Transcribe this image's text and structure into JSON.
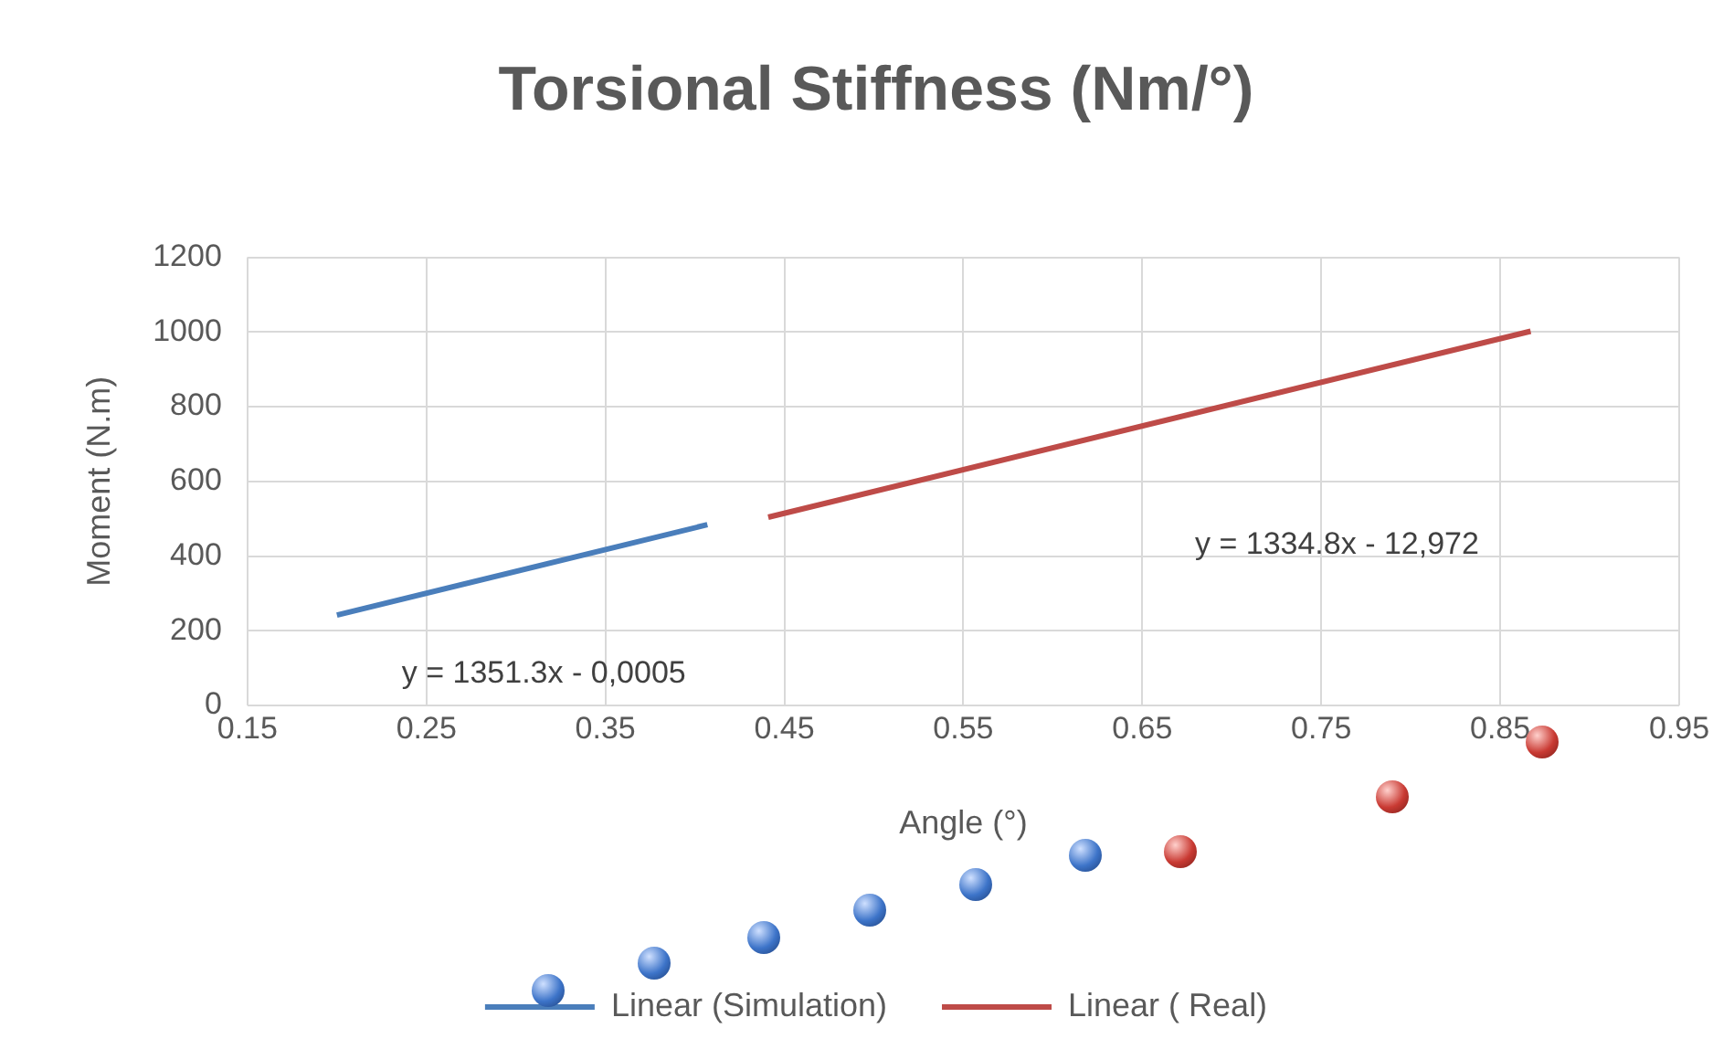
{
  "chart_data": {
    "type": "line",
    "title": "Torsional Stiffness (Nm/°)",
    "xlabel": "Angle (°)",
    "ylabel": "Moment (N.m)",
    "series": [
      {
        "name": "Linear (Simulation)",
        "color": "#4a7ebb",
        "x": [
          0.2,
          0.407
        ],
        "values": [
          242,
          484
        ]
      },
      {
        "name": "Linear ( Real)",
        "color": "#be4b48",
        "x": [
          0.441,
          0.867
        ],
        "values": [
          504,
          1002
        ]
      }
    ],
    "xlim": [
      0.15,
      0.95
    ],
    "xticks": [
      0.15,
      0.25,
      0.35,
      0.45,
      0.55,
      0.65,
      0.75,
      0.85,
      0.95
    ],
    "ylim": [
      0,
      1200
    ],
    "yticks": [
      0,
      200,
      400,
      600,
      800,
      1000,
      1200
    ],
    "annotations": [
      "y = 1351.3x - 0,0005",
      "y = 1334.8x - 12,972"
    ],
    "grid": true,
    "legend": "bottom",
    "marker": "none",
    "line_style": "solid"
  }
}
